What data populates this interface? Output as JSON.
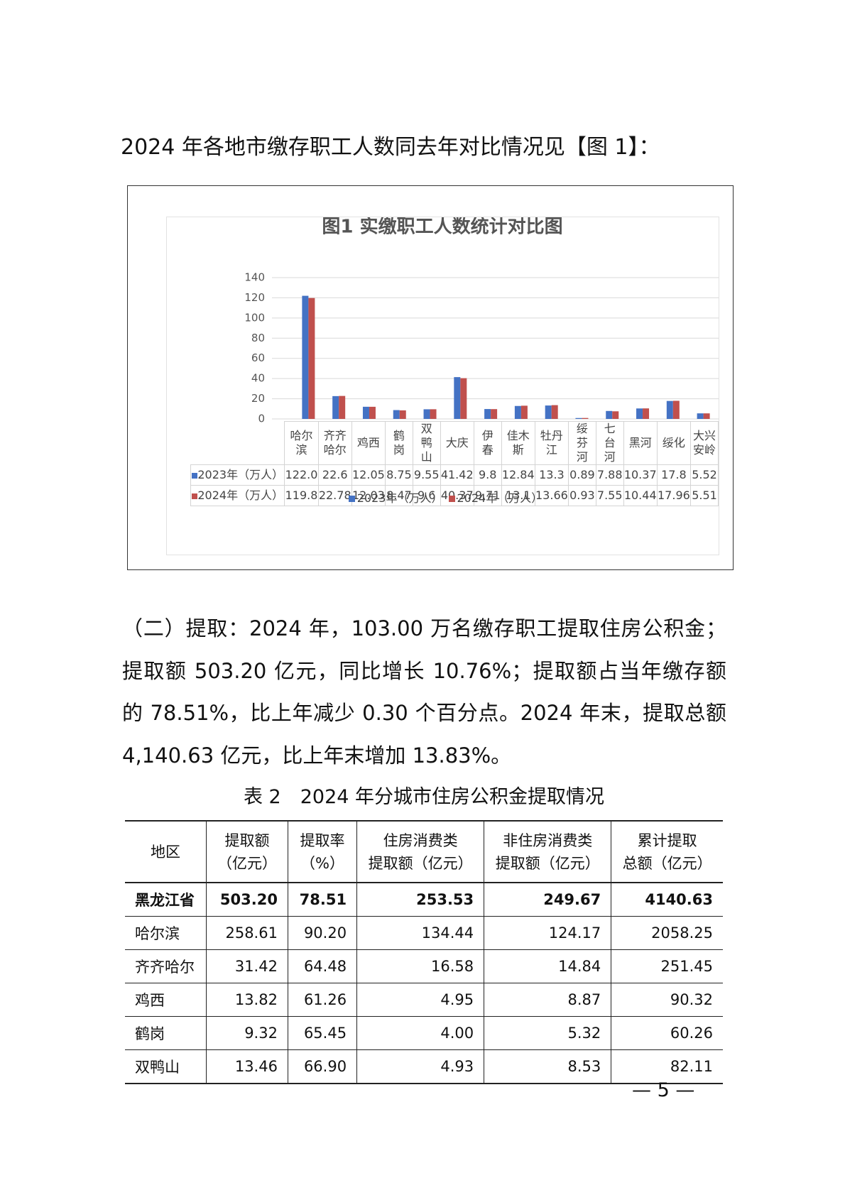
{
  "heading": "2024 年各地市缴存职工人数同去年对比情况见【图 1】：",
  "chart_data": {
    "type": "bar",
    "title": "图1  实缴职工人数统计对比图",
    "categories": [
      "哈尔滨",
      "齐齐哈尔",
      "鸡西",
      "鹤岗",
      "双鸭山",
      "大庆",
      "伊春",
      "佳木斯",
      "牡丹江",
      "绥芬河",
      "七台河",
      "黑河",
      "绥化",
      "大兴安岭"
    ],
    "series": [
      {
        "name": "2023年（万人）",
        "color": "#4472c4",
        "values": [
          122.0,
          22.6,
          12.05,
          8.75,
          9.55,
          41.42,
          9.8,
          12.84,
          13.3,
          0.89,
          7.88,
          10.37,
          17.8,
          5.52
        ],
        "value_labels": [
          "122.0",
          "22.6",
          "12.05",
          "8.75",
          "9.55",
          "41.42",
          "9.8",
          "12.84",
          "13.3",
          "0.89",
          "7.88",
          "10.37",
          "17.8",
          "5.52"
        ]
      },
      {
        "name": "2024年（万人）",
        "color": "#c0504d",
        "values": [
          119.8,
          22.78,
          12.03,
          8.47,
          9.6,
          40.37,
          9.71,
          13.1,
          13.66,
          0.93,
          7.55,
          10.44,
          17.96,
          5.51
        ]
      }
    ],
    "ylim": [
      0,
      140
    ],
    "yticks": [
      0,
      20,
      40,
      60,
      80,
      100,
      120,
      140
    ],
    "grid": true,
    "legend": "bottom"
  },
  "paragraph": [
    "（二）提取：2024 年，103.00 万名缴存职工提取住房公积金；",
    "提取额 503.20 亿元，同比增长 10.76%；提取额占当年缴存额",
    "的 78.51%，比上年减少 0.30 个百分点。2024 年末，提取总额",
    "4,140.63 亿元，比上年末增加 13.83%。"
  ],
  "table": {
    "caption": "表 2　2024 年分城市住房公积金提取情况",
    "header": [
      [
        "地区"
      ],
      [
        "提取额",
        "（亿元）"
      ],
      [
        "提取率",
        "（%）"
      ],
      [
        "住房消费类",
        "提取额（亿元）"
      ],
      [
        "非住房消费类",
        "提取额（亿元）"
      ],
      [
        "累计提取",
        "总额（亿元）"
      ]
    ],
    "rows": [
      [
        "黑龙江省",
        "503.20",
        "78.51",
        "253.53",
        "249.67",
        "4140.63"
      ],
      [
        "哈尔滨",
        "258.61",
        "90.20",
        "134.44",
        "124.17",
        "2058.25"
      ],
      [
        "齐齐哈尔",
        "31.42",
        "64.48",
        "16.58",
        "14.84",
        "251.45"
      ],
      [
        "鸡西",
        "13.82",
        "61.26",
        "4.95",
        "8.87",
        "90.32"
      ],
      [
        "鹤岗",
        "9.32",
        "65.45",
        "4.00",
        "5.32",
        "60.26"
      ],
      [
        "双鸭山",
        "13.46",
        "66.90",
        "4.93",
        "8.53",
        "82.11"
      ]
    ]
  },
  "page_number": "— 5 —"
}
